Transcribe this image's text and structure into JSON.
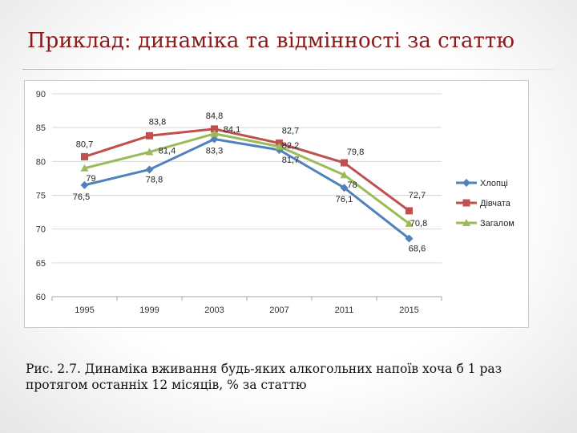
{
  "slide": {
    "title": "Приклад: динаміка та відмінності за статтю",
    "caption": "Рис. 2.7. Динаміка вживання будь-яких алкогольних напоїв хоча б 1 раз протягом останніх 12 місяців, % за статтю"
  },
  "chart_data": {
    "type": "line",
    "categories": [
      "1995",
      "1999",
      "2003",
      "2007",
      "2011",
      "2015"
    ],
    "ylim": [
      60,
      90
    ],
    "yticks": [
      60,
      65,
      70,
      75,
      80,
      85,
      90
    ],
    "grid": true,
    "legend_position": "right",
    "series": [
      {
        "name": "Хлопці",
        "color": "#4F81BD",
        "marker": "diamond",
        "values": [
          76.5,
          78.8,
          83.3,
          81.7,
          76.1,
          68.6
        ],
        "labels": [
          "76,5",
          "78,8",
          "83,3",
          "81,7",
          "76,1",
          "68,6"
        ]
      },
      {
        "name": "Дівчата",
        "color": "#C0504D",
        "marker": "square",
        "values": [
          80.7,
          83.8,
          84.8,
          82.7,
          79.8,
          72.7
        ],
        "labels": [
          "80,7",
          "83,8",
          "84,8",
          "82,7",
          "79,8",
          "72,7"
        ]
      },
      {
        "name": "Загалом",
        "color": "#9BBB59",
        "marker": "triangle",
        "values": [
          79,
          81.4,
          84.1,
          82.2,
          78,
          70.8
        ],
        "labels": [
          "79",
          "81,4",
          "84,1",
          "82,2",
          "78",
          "70,8"
        ]
      }
    ]
  }
}
